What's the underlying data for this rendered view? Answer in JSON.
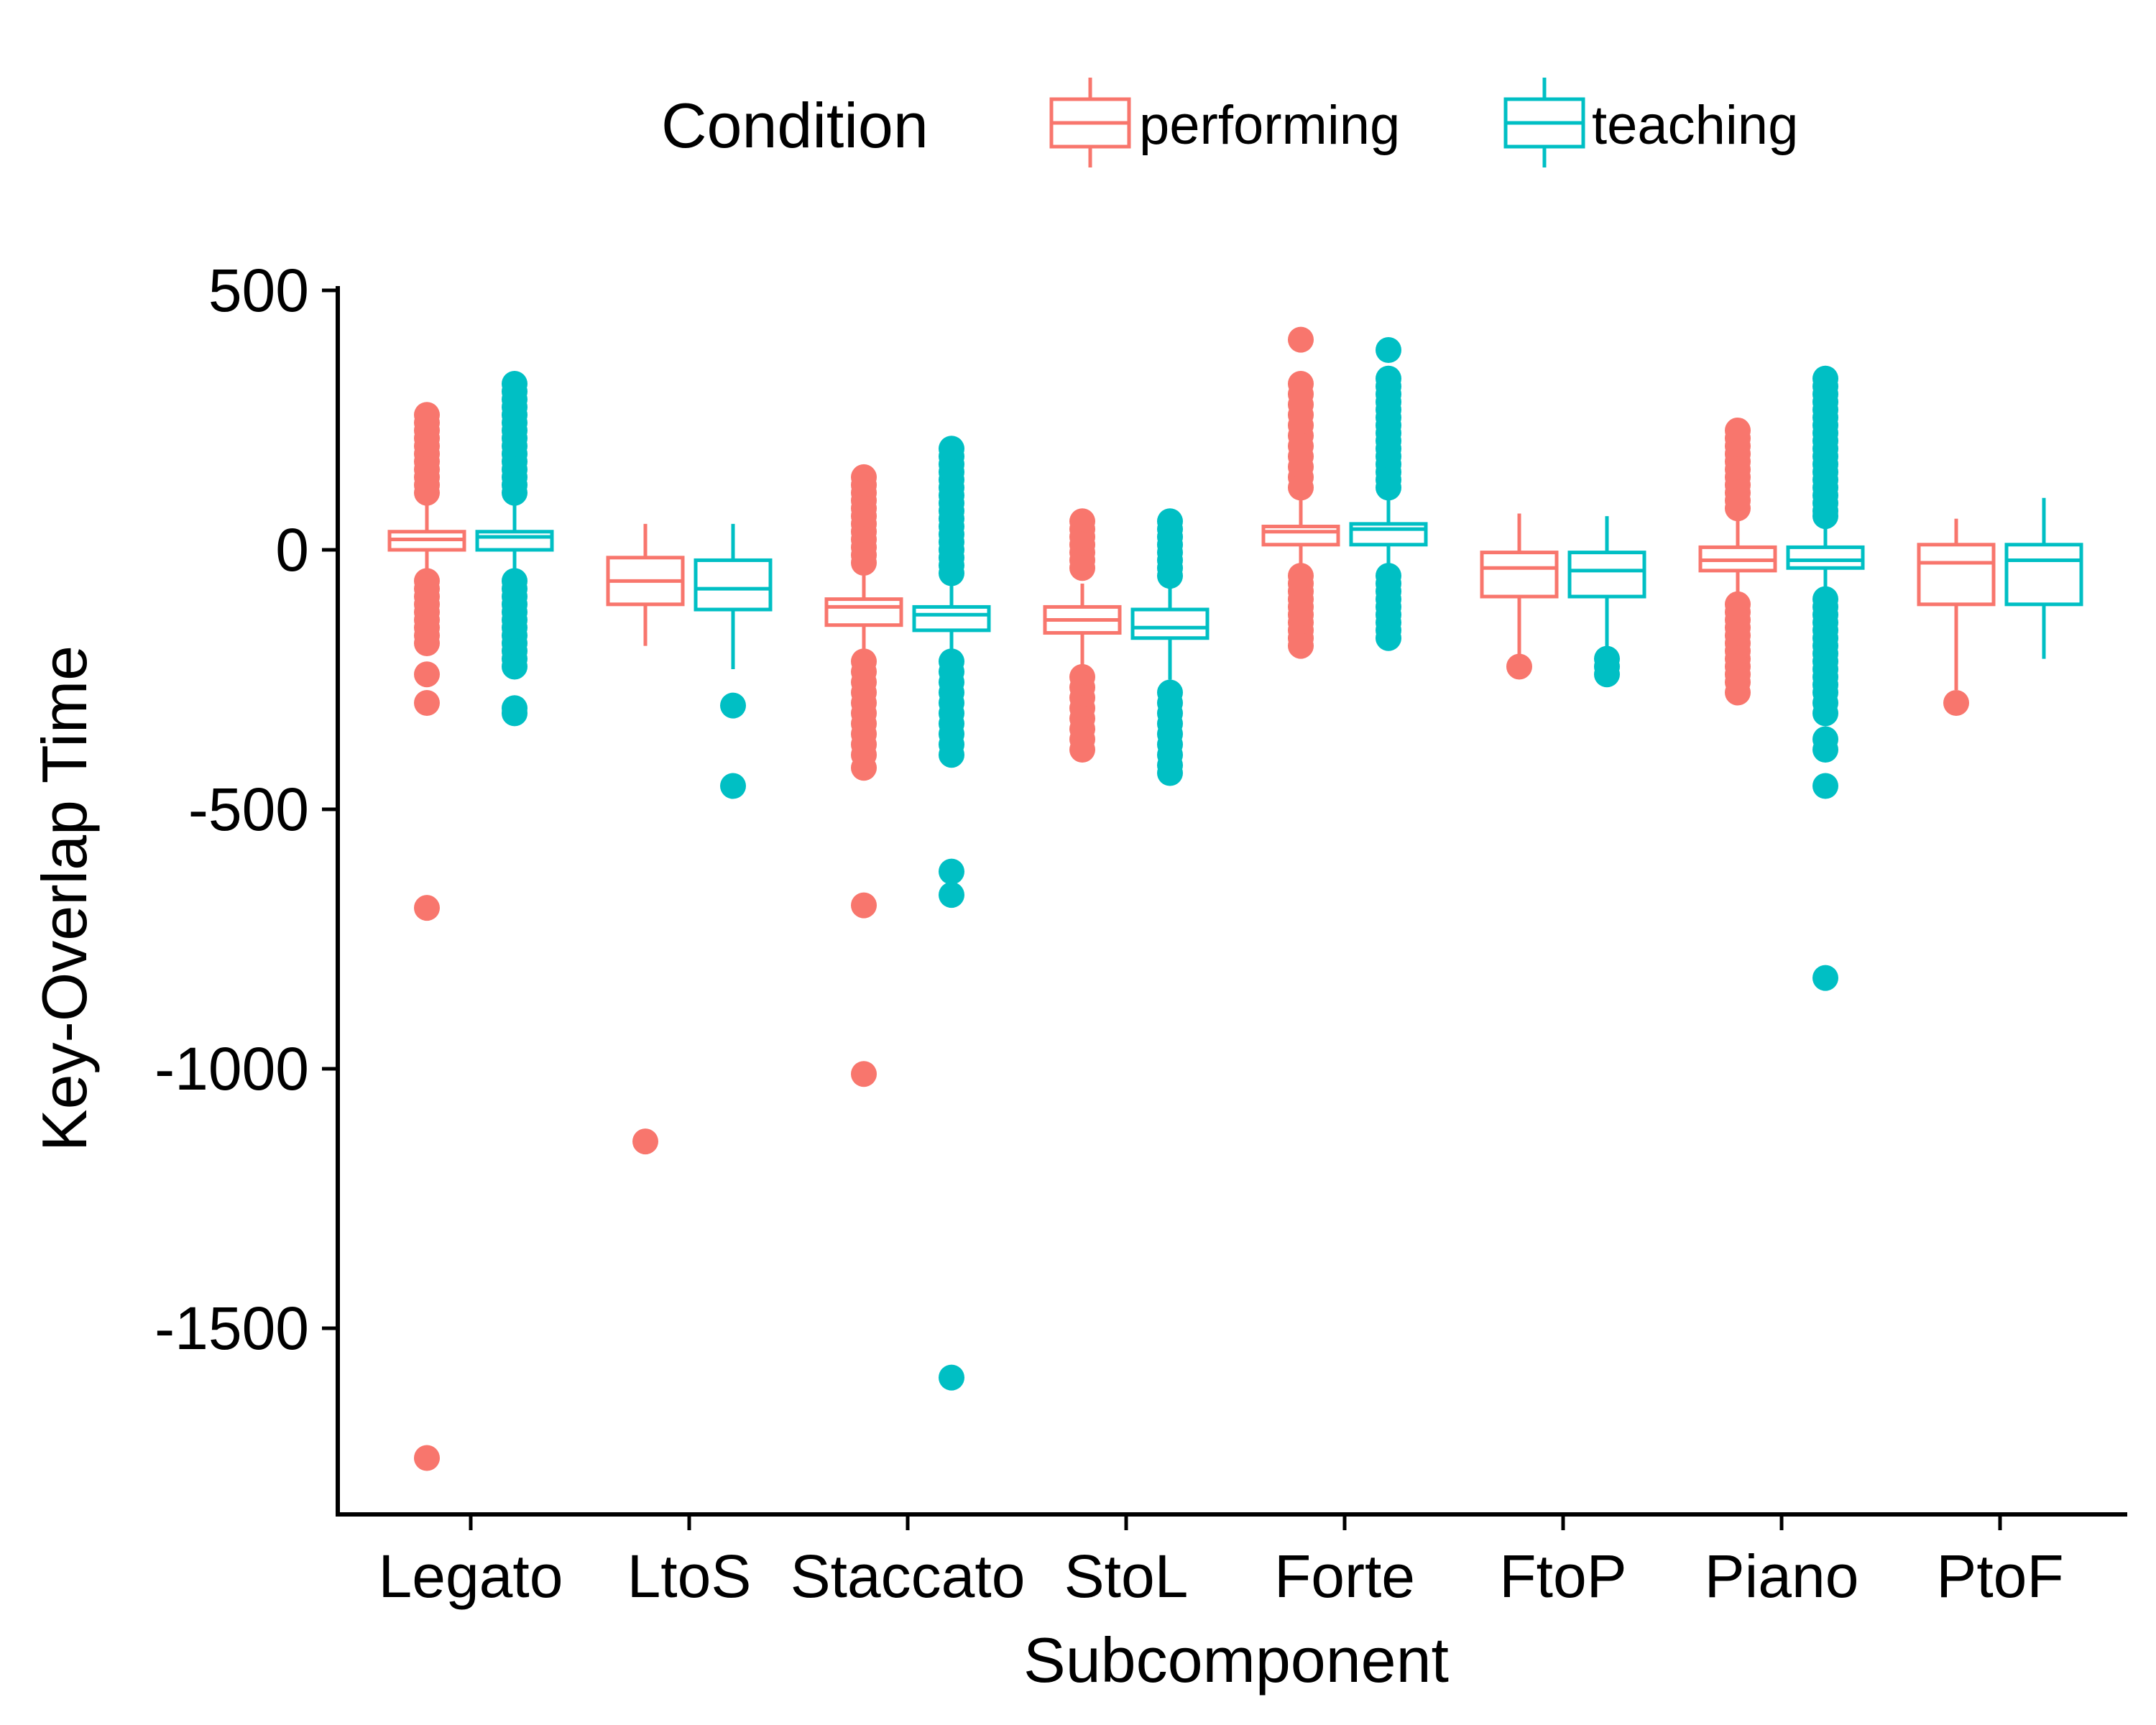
{
  "chart_data": {
    "type": "boxplot",
    "xlabel": "Subcomponent",
    "ylabel": "Key-Overlap Time",
    "ylim": [
      -1780,
      500
    ],
    "yticks": [
      500,
      0,
      -500,
      -1000,
      -1500
    ],
    "ytick_labels": [
      "500",
      "0",
      "-500",
      "-1000",
      "-1500"
    ],
    "grid": false,
    "legend": {
      "title": "Condition",
      "position": "top",
      "entries": [
        "performing",
        "teaching"
      ]
    },
    "categories": [
      "Legato",
      "LtoS",
      "Staccato",
      "StoL",
      "Forte",
      "FtoP",
      "Piano",
      "PtoF"
    ],
    "series": [
      {
        "name": "performing",
        "color": "#F8766D",
        "boxes": [
          {
            "whisker_low": -55,
            "q1": 0,
            "median": 20,
            "q3": 35,
            "whisker_high": 90,
            "outliers": [
              260,
              245,
              230,
              215,
              200,
              185,
              170,
              155,
              140,
              125,
              110,
              -60,
              -75,
              -90,
              -105,
              -120,
              -135,
              -150,
              -165,
              -180,
              -240,
              -295,
              -690,
              -1750
            ]
          },
          {
            "whisker_low": -185,
            "q1": -105,
            "median": -60,
            "q3": -15,
            "whisker_high": 50,
            "outliers": [
              -1140
            ]
          },
          {
            "whisker_low": -205,
            "q1": -145,
            "median": -110,
            "q3": -95,
            "whisker_high": -40,
            "outliers": [
              140,
              125,
              110,
              95,
              80,
              65,
              50,
              35,
              20,
              5,
              -10,
              -25,
              -215,
              -235,
              -255,
              -275,
              -295,
              -315,
              -335,
              -355,
              -375,
              -395,
              -420,
              -685,
              -1010
            ]
          },
          {
            "whisker_low": -225,
            "q1": -160,
            "median": -135,
            "q3": -110,
            "whisker_high": -65,
            "outliers": [
              55,
              40,
              25,
              10,
              -5,
              -20,
              -35,
              -245,
              -265,
              -285,
              -305,
              -325,
              -345,
              -365,
              -385
            ]
          },
          {
            "whisker_low": -45,
            "q1": 10,
            "median": 35,
            "q3": 45,
            "whisker_high": 100,
            "outliers": [
              405,
              320,
              300,
              280,
              260,
              240,
              220,
              200,
              180,
              160,
              140,
              120,
              -50,
              -65,
              -80,
              -95,
              -110,
              -125,
              -140,
              -155,
              -170,
              -185
            ]
          },
          {
            "whisker_low": -210,
            "q1": -90,
            "median": -35,
            "q3": -5,
            "whisker_high": 70,
            "outliers": [
              -225
            ]
          },
          {
            "whisker_low": -95,
            "q1": -40,
            "median": -20,
            "q3": 5,
            "whisker_high": 60,
            "outliers": [
              230,
              215,
              200,
              185,
              170,
              155,
              140,
              125,
              110,
              95,
              80,
              -105,
              -120,
              -135,
              -150,
              -165,
              -180,
              -195,
              -210,
              -225,
              -240,
              -255,
              -275
            ]
          },
          {
            "whisker_low": -270,
            "q1": -105,
            "median": -25,
            "q3": 10,
            "whisker_high": 60,
            "outliers": [
              -295
            ]
          }
        ]
      },
      {
        "name": "teaching",
        "color": "#00BFC4",
        "boxes": [
          {
            "whisker_low": -50,
            "q1": 0,
            "median": 25,
            "q3": 35,
            "whisker_high": 90,
            "outliers": [
              320,
              305,
              290,
              275,
              260,
              245,
              230,
              215,
              200,
              185,
              170,
              155,
              140,
              125,
              110,
              -60,
              -75,
              -90,
              -105,
              -120,
              -135,
              -150,
              -165,
              -180,
              -195,
              -210,
              -225,
              -305,
              -315
            ]
          },
          {
            "whisker_low": -230,
            "q1": -115,
            "median": -75,
            "q3": -20,
            "whisker_high": 50,
            "outliers": [
              -300,
              -455
            ]
          },
          {
            "whisker_low": -205,
            "q1": -155,
            "median": -125,
            "q3": -110,
            "whisker_high": -60,
            "outliers": [
              195,
              180,
              165,
              150,
              135,
              120,
              105,
              90,
              75,
              60,
              45,
              30,
              15,
              0,
              -15,
              -30,
              -45,
              -215,
              -235,
              -255,
              -275,
              -295,
              -315,
              -335,
              -355,
              -375,
              -395,
              -620,
              -665,
              -1595
            ]
          },
          {
            "whisker_low": -250,
            "q1": -170,
            "median": -150,
            "q3": -115,
            "whisker_high": -60,
            "outliers": [
              55,
              40,
              25,
              10,
              -5,
              -20,
              -35,
              -50,
              -275,
              -295,
              -315,
              -335,
              -355,
              -375,
              -395,
              -415,
              -430
            ]
          },
          {
            "whisker_low": -40,
            "q1": 10,
            "median": 40,
            "q3": 50,
            "whisker_high": 105,
            "outliers": [
              385,
              330,
              315,
              300,
              285,
              270,
              255,
              240,
              225,
              210,
              195,
              180,
              165,
              150,
              135,
              120,
              -50,
              -65,
              -80,
              -95,
              -110,
              -125,
              -140,
              -155,
              -170
            ]
          },
          {
            "whisker_low": -200,
            "q1": -90,
            "median": -40,
            "q3": -5,
            "whisker_high": 65,
            "outliers": [
              -210,
              -225,
              -240
            ]
          },
          {
            "whisker_low": -85,
            "q1": -35,
            "median": -20,
            "q3": 5,
            "whisker_high": 55,
            "outliers": [
              330,
              315,
              300,
              285,
              270,
              255,
              240,
              225,
              210,
              195,
              180,
              165,
              150,
              135,
              120,
              105,
              90,
              75,
              65,
              -95,
              -110,
              -125,
              -140,
              -155,
              -170,
              -185,
              -200,
              -215,
              -230,
              -245,
              -260,
              -275,
              -295,
              -315,
              -365,
              -385,
              -455,
              -825
            ]
          },
          {
            "whisker_low": -210,
            "q1": -105,
            "median": -20,
            "q3": 10,
            "whisker_high": 100,
            "outliers": []
          }
        ]
      }
    ]
  }
}
